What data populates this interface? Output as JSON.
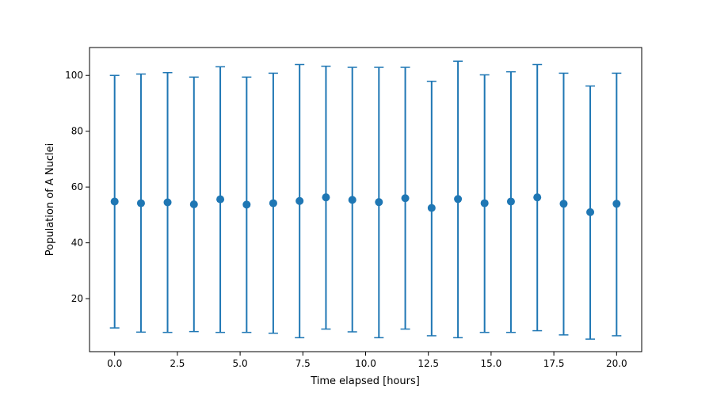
{
  "chart_data": {
    "type": "scatter",
    "title": "",
    "xlabel": "Time elapsed [hours]",
    "ylabel": "Population of A Nuclei",
    "xlim": [
      -1.0,
      21.0
    ],
    "ylim": [
      1.0,
      110.0
    ],
    "xticks": [
      "0.0",
      "2.5",
      "5.0",
      "7.5",
      "10.0",
      "12.5",
      "15.0",
      "17.5",
      "20.0"
    ],
    "yticks": [
      "20",
      "40",
      "60",
      "80",
      "100"
    ],
    "grid": false,
    "legend": "none",
    "marker_color": "#1f77b4",
    "series": [
      {
        "x": [
          0.0,
          1.05,
          2.11,
          3.16,
          4.21,
          5.26,
          6.32,
          7.37,
          8.42,
          9.47,
          10.53,
          11.58,
          12.63,
          13.68,
          14.74,
          15.79,
          16.84,
          17.89,
          18.95,
          20.0
        ],
        "y": [
          54.8,
          54.2,
          54.5,
          53.8,
          55.6,
          53.7,
          54.2,
          55.0,
          56.3,
          55.4,
          54.6,
          56.0,
          52.5,
          55.7,
          54.2,
          54.8,
          56.3,
          54.0,
          51.0,
          54.0
        ],
        "err_low": [
          9.5,
          8.0,
          7.9,
          8.2,
          7.9,
          7.9,
          7.6,
          6.0,
          9.1,
          8.1,
          6.0,
          9.1,
          6.7,
          6.0,
          7.9,
          7.9,
          8.5,
          7.0,
          5.5,
          6.7
        ],
        "err_high": [
          100.0,
          100.5,
          101.0,
          99.4,
          103.1,
          99.4,
          100.8,
          103.9,
          103.3,
          102.9,
          102.9,
          102.9,
          97.9,
          105.1,
          100.2,
          101.3,
          103.9,
          100.8,
          96.2,
          100.8
        ]
      }
    ]
  }
}
